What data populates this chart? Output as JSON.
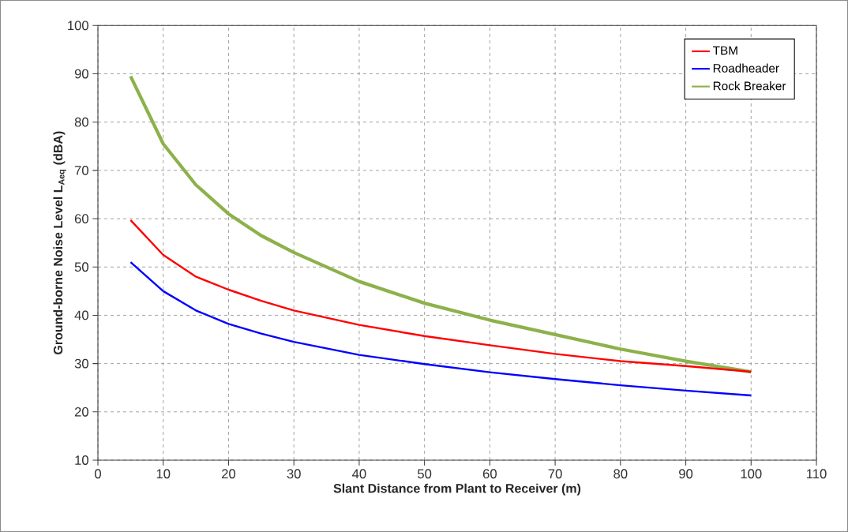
{
  "chart_data": {
    "type": "line",
    "xlabel": "Slant Distance  from Plant to Receiver  (m)",
    "ylabel": "Ground-borne  Noise  Level  L$_{Aeq}$ (dBA)",
    "x": [
      5,
      10,
      15,
      20,
      25,
      30,
      40,
      50,
      60,
      70,
      80,
      90,
      100
    ],
    "series": [
      {
        "name": "TBM",
        "color": "#ff0000",
        "values": [
          59.7,
          52.5,
          48,
          45.3,
          43,
          41,
          38,
          35.7,
          33.8,
          32,
          30.5,
          29.5,
          28.3
        ]
      },
      {
        "name": "Roadheader",
        "color": "#0000ff",
        "values": [
          51,
          45,
          41,
          38.2,
          36.2,
          34.5,
          31.8,
          29.9,
          28.2,
          26.8,
          25.5,
          24.4,
          23.4
        ]
      },
      {
        "name": "Rock Breaker",
        "color": "#8db14b",
        "values": [
          89.5,
          75.5,
          67,
          61,
          56.5,
          53,
          47,
          42.5,
          39,
          36,
          33,
          30.5,
          28.3
        ]
      }
    ],
    "xlim": [
      0,
      110
    ],
    "xticks": [
      0,
      10,
      20,
      30,
      40,
      50,
      60,
      70,
      80,
      90,
      100,
      110
    ],
    "ylim": [
      10,
      100
    ],
    "yticks": [
      10,
      20,
      30,
      40,
      50,
      60,
      70,
      80,
      90,
      100
    ],
    "grid": true,
    "legend": "top right",
    "marker": "none",
    "line_style": "solid"
  }
}
